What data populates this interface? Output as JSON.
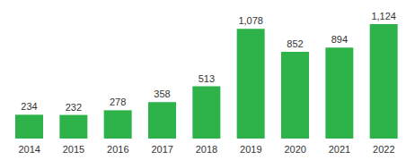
{
  "chart_data": {
    "type": "bar",
    "categories": [
      "2014",
      "2015",
      "2016",
      "2017",
      "2018",
      "2019",
      "2020",
      "2021",
      "2022"
    ],
    "values": [
      234,
      232,
      278,
      358,
      513,
      1078,
      852,
      894,
      1124
    ],
    "value_labels": [
      "234",
      "232",
      "278",
      "358",
      "513",
      "1,078",
      "852",
      "894",
      "1,124"
    ],
    "color": "#2eb34b",
    "data_labels": true,
    "tick_labels": "x",
    "grid": false
  }
}
